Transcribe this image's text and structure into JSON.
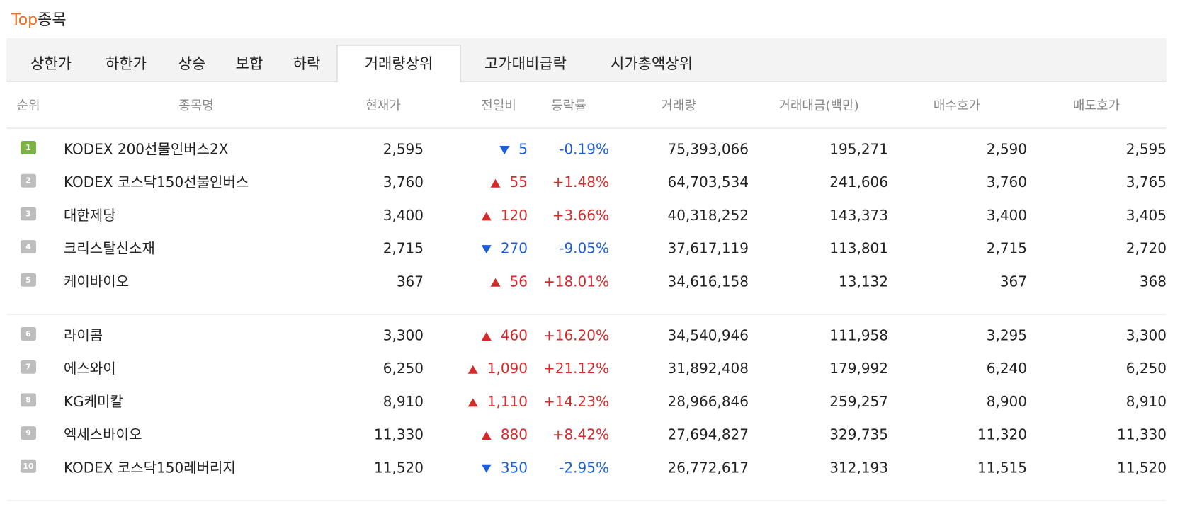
{
  "header": {
    "top": "Top",
    "rest": "종목"
  },
  "tabs": {
    "active": 5,
    "items": [
      "상한가",
      "하한가",
      "상승",
      "보합",
      "하락",
      "거래량상위",
      "고가대비급락",
      "시가총액상위"
    ]
  },
  "table": {
    "headers": [
      "순위",
      "종목명",
      "현재가",
      "전일비",
      "등락률",
      "거래량",
      "거래대금(백만)",
      "매수호가",
      "매도호가"
    ],
    "rows": [
      {
        "rank": "1",
        "name": "KODEX 200선물인버스2X",
        "price": "2,595",
        "direction": "down",
        "change": "5",
        "rate": "-0.19%",
        "volume": "75,393,066",
        "amount": "195,271",
        "bid": "2,590",
        "ask": "2,595"
      },
      {
        "rank": "2",
        "name": "KODEX 코스닥150선물인버스",
        "price": "3,760",
        "direction": "up",
        "change": "55",
        "rate": "+1.48%",
        "volume": "64,703,534",
        "amount": "241,606",
        "bid": "3,760",
        "ask": "3,765"
      },
      {
        "rank": "3",
        "name": "대한제당",
        "price": "3,400",
        "direction": "up",
        "change": "120",
        "rate": "+3.66%",
        "volume": "40,318,252",
        "amount": "143,373",
        "bid": "3,400",
        "ask": "3,405"
      },
      {
        "rank": "4",
        "name": "크리스탈신소재",
        "price": "2,715",
        "direction": "down",
        "change": "270",
        "rate": "-9.05%",
        "volume": "37,617,119",
        "amount": "113,801",
        "bid": "2,715",
        "ask": "2,720"
      },
      {
        "rank": "5",
        "name": "케이바이오",
        "price": "367",
        "direction": "up",
        "change": "56",
        "rate": "+18.01%",
        "volume": "34,616,158",
        "amount": "13,132",
        "bid": "367",
        "ask": "368"
      },
      {
        "rank": "6",
        "name": "라이콤",
        "price": "3,300",
        "direction": "up",
        "change": "460",
        "rate": "+16.20%",
        "volume": "34,540,946",
        "amount": "111,958",
        "bid": "3,295",
        "ask": "3,300"
      },
      {
        "rank": "7",
        "name": "에스와이",
        "price": "6,250",
        "direction": "up",
        "change": "1,090",
        "rate": "+21.12%",
        "volume": "31,892,408",
        "amount": "179,992",
        "bid": "6,240",
        "ask": "6,250"
      },
      {
        "rank": "8",
        "name": "KG케미칼",
        "price": "8,910",
        "direction": "up",
        "change": "1,110",
        "rate": "+14.23%",
        "volume": "28,966,846",
        "amount": "259,257",
        "bid": "8,900",
        "ask": "8,910"
      },
      {
        "rank": "9",
        "name": "엑세스바이오",
        "price": "11,330",
        "direction": "up",
        "change": "880",
        "rate": "+8.42%",
        "volume": "27,694,827",
        "amount": "329,735",
        "bid": "11,320",
        "ask": "11,330"
      },
      {
        "rank": "10",
        "name": "KODEX 코스닥150레버리지",
        "price": "11,520",
        "direction": "down",
        "change": "350",
        "rate": "-2.95%",
        "volume": "26,772,617",
        "amount": "312,193",
        "bid": "11,515",
        "ask": "11,520"
      }
    ]
  }
}
